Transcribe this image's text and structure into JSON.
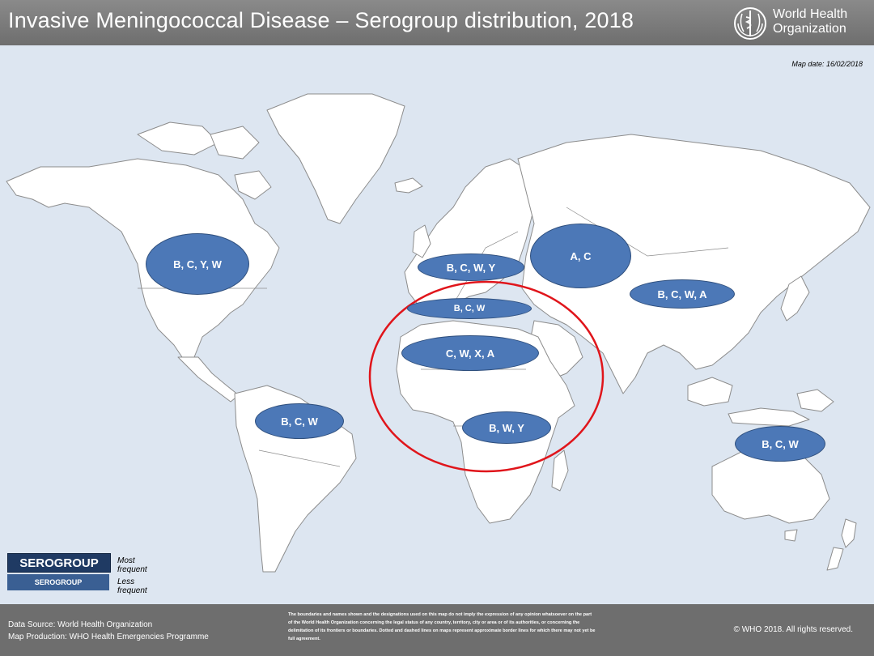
{
  "header": {
    "title": "Invasive Meningococcal Disease – Serogroup distribution, 2018",
    "org_line1": "World Health",
    "org_line2": "Organization",
    "logo_icon": "who-emblem-icon"
  },
  "map_date": "Map date: 16/02/2018",
  "regions": [
    {
      "id": "north-america",
      "label": "B, C, Y, W"
    },
    {
      "id": "europe",
      "label": "B, C, W, Y"
    },
    {
      "id": "central-asia",
      "label": "A, C"
    },
    {
      "id": "east-asia",
      "label": "B, C, W, A"
    },
    {
      "id": "north-africa",
      "label": "B, C, W"
    },
    {
      "id": "african-belt",
      "label": "C, W, X, A"
    },
    {
      "id": "southern-africa",
      "label": "B, W, Y"
    },
    {
      "id": "south-america",
      "label": "B, C, W"
    },
    {
      "id": "australia",
      "label": "B, C, W"
    }
  ],
  "legend": {
    "most_box": "SEROGROUP",
    "most_text": "Most frequent",
    "less_box": "SEROGROUP",
    "less_text": "Less frequent"
  },
  "footer": {
    "source": "Data Source: World Health Organization",
    "production": "Map Production: WHO Health Emergencies Programme",
    "disclaimer": "The boundaries and names shown and the designations used on this map do not imply the expression of any opinion whatsoever on the part of the World Health Organization concerning the legal status of any country, territory, city or area or of its authorities, or concerning the delimitation of its frontiers or boundaries. Dotted and dashed lines on maps represent approximate border lines for which there may not yet be full agreement.",
    "copyright": "© WHO 2018. All rights reserved."
  },
  "colors": {
    "ocean": "#dde6f1",
    "land": "#ffffff",
    "border": "#8c8c8c",
    "oval": "#4c78b7",
    "highlight_circle": "#e0151b",
    "header": "#787878"
  }
}
